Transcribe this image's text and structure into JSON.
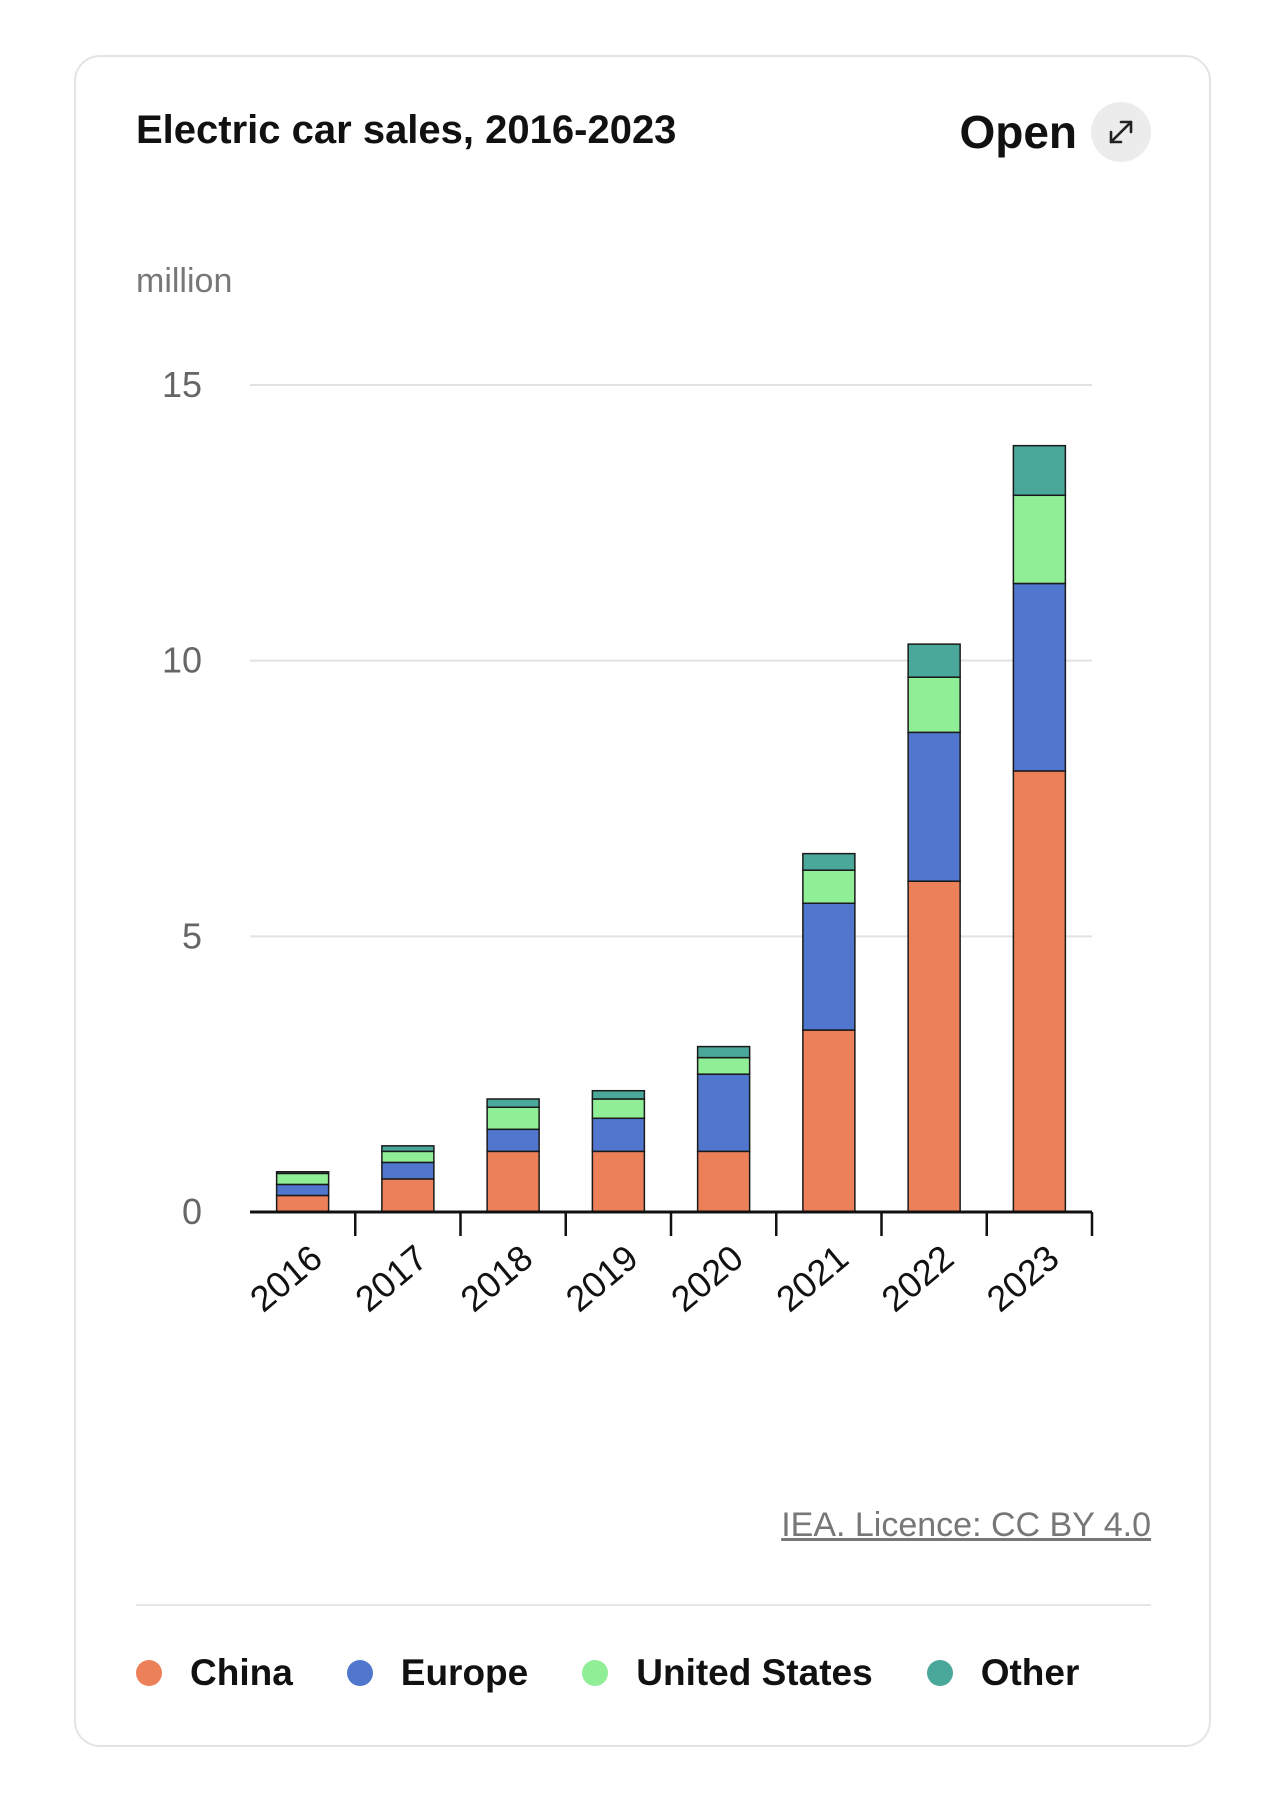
{
  "card": {
    "title": "Electric car sales, 2016-2023",
    "open_label": "Open",
    "open_icon": "expand-arrows-icon",
    "source": "IEA. Licence: CC BY 4.0"
  },
  "colors": {
    "China": "#ec8059",
    "Europe": "#5077cd",
    "United States": "#90ee97",
    "Other": "#4aa89a"
  },
  "chart_data": {
    "type": "bar",
    "stacked": true,
    "unit_label": "million",
    "categories": [
      "2016",
      "2017",
      "2018",
      "2019",
      "2020",
      "2021",
      "2022",
      "2023"
    ],
    "series": [
      {
        "name": "China",
        "values": [
          0.3,
          0.6,
          1.1,
          1.1,
          1.1,
          3.3,
          6.0,
          8.0
        ]
      },
      {
        "name": "Europe",
        "values": [
          0.2,
          0.3,
          0.4,
          0.6,
          1.4,
          2.3,
          2.7,
          3.4
        ]
      },
      {
        "name": "United States",
        "values": [
          0.2,
          0.2,
          0.4,
          0.35,
          0.3,
          0.6,
          1.0,
          1.6
        ]
      },
      {
        "name": "Other",
        "values": [
          0.03,
          0.1,
          0.15,
          0.15,
          0.2,
          0.3,
          0.6,
          0.9
        ]
      }
    ],
    "yticks": [
      0,
      5,
      10,
      15
    ],
    "ylim": [
      0,
      15
    ],
    "grid": true,
    "legend_position": "bottom"
  }
}
